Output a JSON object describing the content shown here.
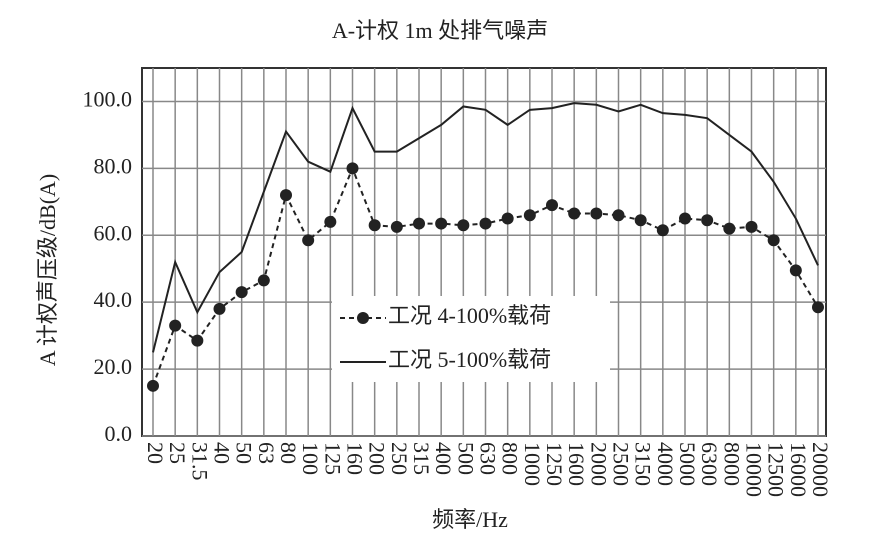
{
  "chart_data": {
    "type": "line",
    "title": "A-计权 1m 处排气噪声",
    "x_label": "频率/Hz",
    "y_label": "A 计权声压级/dB(A)",
    "categories": [
      "20",
      "25",
      "31.5",
      "40",
      "50",
      "63",
      "80",
      "100",
      "125",
      "160",
      "200",
      "250",
      "315",
      "400",
      "500",
      "630",
      "800",
      "1000",
      "1250",
      "1600",
      "2000",
      "2500",
      "3150",
      "4000",
      "5000",
      "6300",
      "8000",
      "10000",
      "12500",
      "16000",
      "20000"
    ],
    "series": [
      {
        "name": "工况 4-100%载荷",
        "color": "#222222",
        "linestyle": "dashed",
        "marker": "circle",
        "values": [
          15,
          33,
          28.5,
          38,
          43,
          46.5,
          72,
          58.5,
          64,
          80,
          63,
          62.5,
          63.5,
          63.5,
          63,
          63.5,
          65,
          66,
          69,
          66.5,
          66.5,
          66,
          64.5,
          61.5,
          65,
          64.5,
          62,
          62.5,
          58.5,
          49.5,
          38.5
        ]
      },
      {
        "name": "工况 5-100%载荷",
        "color": "#222222",
        "linestyle": "solid",
        "values": [
          25,
          52,
          37,
          49,
          55,
          73,
          91,
          82,
          79,
          98,
          85,
          85,
          89,
          93,
          98.5,
          97.5,
          93,
          97.5,
          98,
          99.5,
          99,
          97,
          99,
          96.5,
          96,
          95,
          90,
          85,
          76,
          65,
          51
        ]
      }
    ],
    "ylim": [
      0,
      110
    ],
    "yticks": [
      {
        "value": 0,
        "label": "0.0"
      },
      {
        "value": 20,
        "label": "20.0"
      },
      {
        "value": 40,
        "label": "40.0"
      },
      {
        "value": 60,
        "label": "60.0"
      },
      {
        "value": 80,
        "label": "80.0"
      },
      {
        "value": 100,
        "label": "100.0"
      }
    ],
    "grid": true
  }
}
